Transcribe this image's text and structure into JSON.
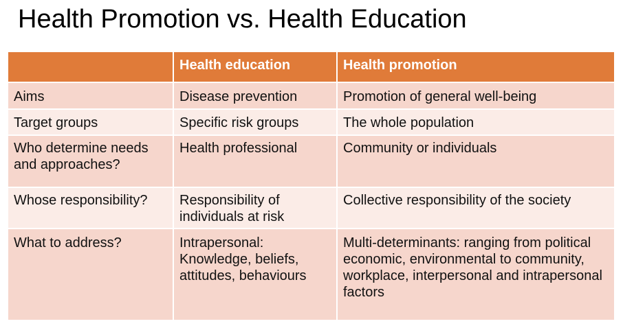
{
  "slide": {
    "title": "Health Promotion vs. Health Education"
  },
  "table": {
    "headers": [
      "",
      "Health education",
      "Health promotion"
    ],
    "rows": [
      [
        "Aims",
        "Disease prevention",
        "Promotion of general well-being"
      ],
      [
        "Target groups",
        "Specific risk groups",
        "The whole population"
      ],
      [
        "Who determine needs and approaches?",
        "Health professional",
        "Community or individuals"
      ],
      [
        "Whose responsibility?",
        "Responsibility of individuals at risk",
        "Collective responsibility of the society"
      ],
      [
        "What to address?",
        "Intrapersonal: Knowledge, beliefs, attitudes, behaviours",
        "Multi-determinants: ranging from political economic, environmental to community, workplace, interpersonal and intrapersonal factors"
      ]
    ]
  },
  "colors": {
    "header_bg": "#e07b39",
    "row_odd_bg": "#f6d6cc",
    "row_even_bg": "#fbece7"
  }
}
